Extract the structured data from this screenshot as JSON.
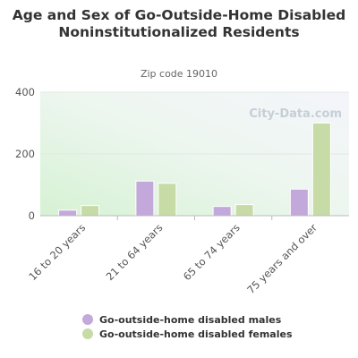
{
  "chart_data": {
    "type": "bar",
    "title": "Age and Sex of Go-Outside-Home Disabled Noninstitutionalized Residents",
    "subtitle": "Zip code 19010",
    "categories": [
      "16 to 20 years",
      "21 to 64 years",
      "65 to 74 years",
      "75 years and over"
    ],
    "series": [
      {
        "name": "Go-outside-home disabled males",
        "color": "#c3a9db",
        "values": [
          18,
          112,
          30,
          86
        ]
      },
      {
        "name": "Go-outside-home disabled females",
        "color": "#c7dba7",
        "values": [
          33,
          105,
          36,
          300
        ]
      }
    ],
    "ylim": [
      0,
      400
    ],
    "yticks": [
      0,
      200,
      400
    ],
    "xlabel": "",
    "ylabel": "",
    "grid": true,
    "legend_position": "bottom",
    "watermark": "City-Data.com"
  }
}
